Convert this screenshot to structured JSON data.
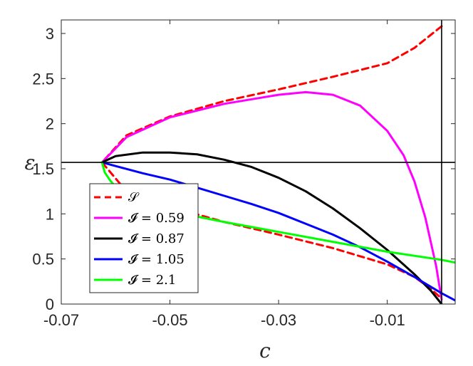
{
  "chart_data": {
    "type": "line",
    "title": "",
    "xlabel": "c",
    "ylabel": "ε",
    "xlim": [
      -0.07,
      0.0025
    ],
    "ylim": [
      0,
      3.15
    ],
    "xticks": [
      -0.07,
      -0.05,
      -0.03,
      -0.01
    ],
    "xtick_labels": [
      "-0.07",
      "-0.05",
      "-0.03",
      "-0.01"
    ],
    "yticks": [
      0,
      0.5,
      1,
      1.5,
      2,
      2.5,
      3
    ],
    "ytick_labels": [
      "0",
      "0.5",
      "1",
      "1.5",
      "2",
      "2.5",
      "3"
    ],
    "grid": false,
    "legend_position": "lower-left",
    "reference_lines": {
      "horizontal_y": 1.5708,
      "vertical_x": 0.0
    },
    "series": [
      {
        "name": "S",
        "legend_label": "𝒮",
        "color": "#ff0000",
        "dash": "dashed",
        "x": [
          0.0,
          -0.005,
          -0.01,
          -0.02,
          -0.03,
          -0.04,
          -0.05,
          -0.058,
          -0.0625,
          -0.058,
          -0.05,
          -0.04,
          -0.03,
          -0.02,
          -0.01,
          -0.005,
          -0.002,
          0.0
        ],
        "y": [
          3.08,
          2.84,
          2.67,
          2.52,
          2.38,
          2.25,
          2.08,
          1.87,
          1.5708,
          1.25,
          1.08,
          0.91,
          0.77,
          0.62,
          0.44,
          0.3,
          0.17,
          0.06
        ]
      },
      {
        "name": "I = 0.59",
        "legend_label": "𝓘 = 0.59",
        "color": "#ff00ff",
        "dash": "solid",
        "x": [
          -0.0625,
          -0.058,
          -0.05,
          -0.04,
          -0.03,
          -0.025,
          -0.02,
          -0.015,
          -0.01,
          -0.007,
          -0.005,
          -0.003,
          -0.001,
          0.0
        ],
        "y": [
          1.5708,
          1.85,
          2.07,
          2.22,
          2.32,
          2.35,
          2.32,
          2.2,
          1.92,
          1.65,
          1.36,
          0.96,
          0.42,
          0.05
        ]
      },
      {
        "name": "I = 0.87",
        "legend_label": "𝓘 = 0.87",
        "color": "#000000",
        "dash": "solid",
        "x": [
          -0.0625,
          -0.06,
          -0.055,
          -0.05,
          -0.045,
          -0.04,
          -0.035,
          -0.03,
          -0.025,
          -0.02,
          -0.015,
          -0.01,
          -0.005,
          -0.002,
          0.0
        ],
        "y": [
          1.5708,
          1.64,
          1.68,
          1.68,
          1.66,
          1.6,
          1.52,
          1.4,
          1.25,
          1.06,
          0.84,
          0.6,
          0.33,
          0.15,
          0.0
        ]
      },
      {
        "name": "I = 1.05",
        "legend_label": "𝓘 = 1.05",
        "color": "#0000ff",
        "dash": "solid",
        "x": [
          -0.0625,
          -0.06,
          -0.055,
          -0.05,
          -0.045,
          -0.04,
          -0.035,
          -0.03,
          -0.025,
          -0.02,
          -0.015,
          -0.01,
          -0.005,
          0.0,
          0.0025
        ],
        "y": [
          1.5708,
          1.53,
          1.45,
          1.38,
          1.29,
          1.2,
          1.11,
          1.01,
          0.89,
          0.77,
          0.63,
          0.47,
          0.3,
          0.12,
          0.04
        ]
      },
      {
        "name": "I = 2.1",
        "legend_label": "𝓘 = 2.1",
        "color": "#00ff00",
        "dash": "solid",
        "x": [
          -0.0625,
          -0.062,
          -0.061,
          -0.06,
          -0.058,
          -0.055,
          -0.05,
          -0.045,
          -0.04,
          -0.03,
          -0.02,
          -0.01,
          0.0,
          0.0025
        ],
        "y": [
          1.5708,
          1.46,
          1.37,
          1.3,
          1.22,
          1.14,
          1.04,
          0.97,
          0.91,
          0.8,
          0.69,
          0.58,
          0.49,
          0.46
        ]
      }
    ]
  }
}
